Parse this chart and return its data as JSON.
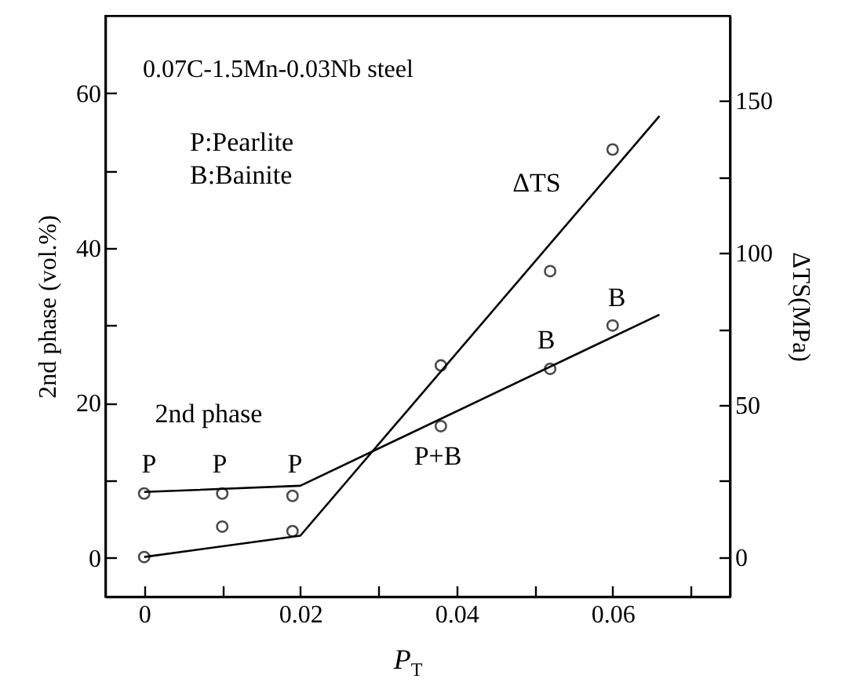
{
  "chart_data": {
    "type": "scatter",
    "xlabel": "P$_{T}$",
    "ylabel": "2nd phase (vol.%)",
    "y2label": "ΔTS(MPa)",
    "xlim": [
      -0.005,
      0.075
    ],
    "xticks": [
      0,
      {
        "value": 0.01,
        "label": null
      },
      0.02,
      {
        "value": 0.03,
        "label": null
      },
      0.04,
      {
        "value": 0.05,
        "label": null
      },
      0.06,
      {
        "value": 0.07,
        "label": null
      }
    ],
    "ylim": [
      -5,
      70
    ],
    "yticks": [
      0,
      {
        "value": 10,
        "label": null
      },
      20,
      {
        "value": 30,
        "label": null
      },
      40,
      {
        "value": 50,
        "label": null
      },
      60
    ],
    "y2lim": [
      -13,
      178
    ],
    "y2ticks": [
      0,
      {
        "value": 25,
        "label": null
      },
      50,
      {
        "value": 75,
        "label": null
      },
      100,
      {
        "value": 125,
        "label": null
      },
      150
    ],
    "series": [
      {
        "marker": "circle",
        "color": "#000000",
        "x": [
          0,
          0.01,
          0.019,
          0.038,
          0.052,
          0.06
        ],
        "values": [
          8.3,
          8.3,
          8,
          17,
          24.4,
          30
        ]
      },
      {
        "type": "line",
        "color": "#000000",
        "x": [
          0,
          0.02,
          0.066
        ],
        "values": [
          8.5,
          9.3,
          31.4
        ]
      },
      {
        "marker": "circle",
        "axis": "y2",
        "color": "#000000",
        "x": [
          0,
          0.01,
          0.019,
          0.038,
          0.052,
          0.06
        ],
        "values": [
          0,
          10,
          8.5,
          63,
          94,
          134
        ]
      },
      {
        "type": "line",
        "axis": "y2",
        "color": "#000000",
        "x": [
          0,
          0.02,
          0.066
        ],
        "values": [
          0,
          7,
          145
        ]
      }
    ],
    "annotations": [
      "0.07C-1.5Mn-0.03Nb steel",
      "P:Pearlite",
      "B:Bainite",
      "2nd phase",
      "P",
      "P",
      "P",
      "P+B",
      "B",
      "B",
      "ΔTS"
    ]
  }
}
